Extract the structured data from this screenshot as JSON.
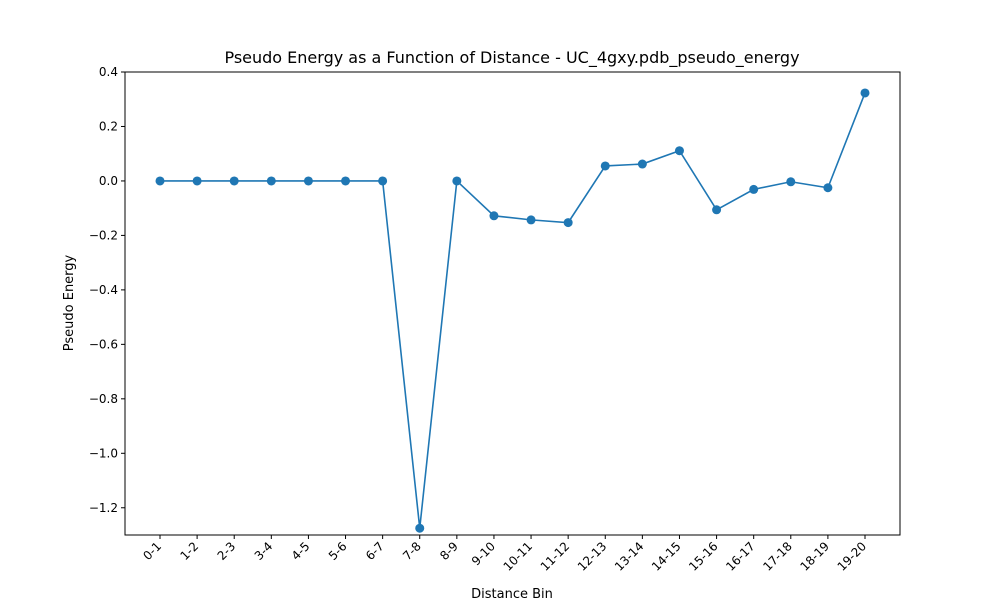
{
  "chart_data": {
    "type": "line",
    "title": "Pseudo Energy as a Function of Distance - UC_4gxy.pdb_pseudo_energy",
    "xlabel": "Distance Bin",
    "ylabel": "Pseudo Energy",
    "categories": [
      "0-1",
      "1-2",
      "2-3",
      "3-4",
      "4-5",
      "5-6",
      "6-7",
      "7-8",
      "8-9",
      "9-10",
      "10-11",
      "11-12",
      "12-13",
      "13-14",
      "14-15",
      "15-16",
      "16-17",
      "17-18",
      "18-19",
      "19-20"
    ],
    "series": [
      {
        "values": [
          0.0,
          0.0,
          0.0,
          0.0,
          0.0,
          0.0,
          0.0,
          -1.275,
          0.0,
          -0.128,
          -0.143,
          -0.153,
          0.055,
          0.062,
          0.111,
          -0.106,
          -0.031,
          -0.003,
          -0.025,
          0.323
        ],
        "color": "#1f77b4",
        "marker": "circle"
      }
    ],
    "ylim": [
      -1.3,
      0.4
    ],
    "yticks": [
      -1.2,
      -1.0,
      -0.8,
      -0.6,
      -0.4,
      -0.2,
      0.0,
      0.2,
      0.4
    ],
    "ytick_labels": [
      "−1.2",
      "−1.0",
      "−0.8",
      "−0.6",
      "−0.4",
      "−0.2",
      "0.0",
      "0.2",
      "0.4"
    ],
    "grid": false,
    "legend": "none",
    "x_tick_rotation": "45"
  }
}
